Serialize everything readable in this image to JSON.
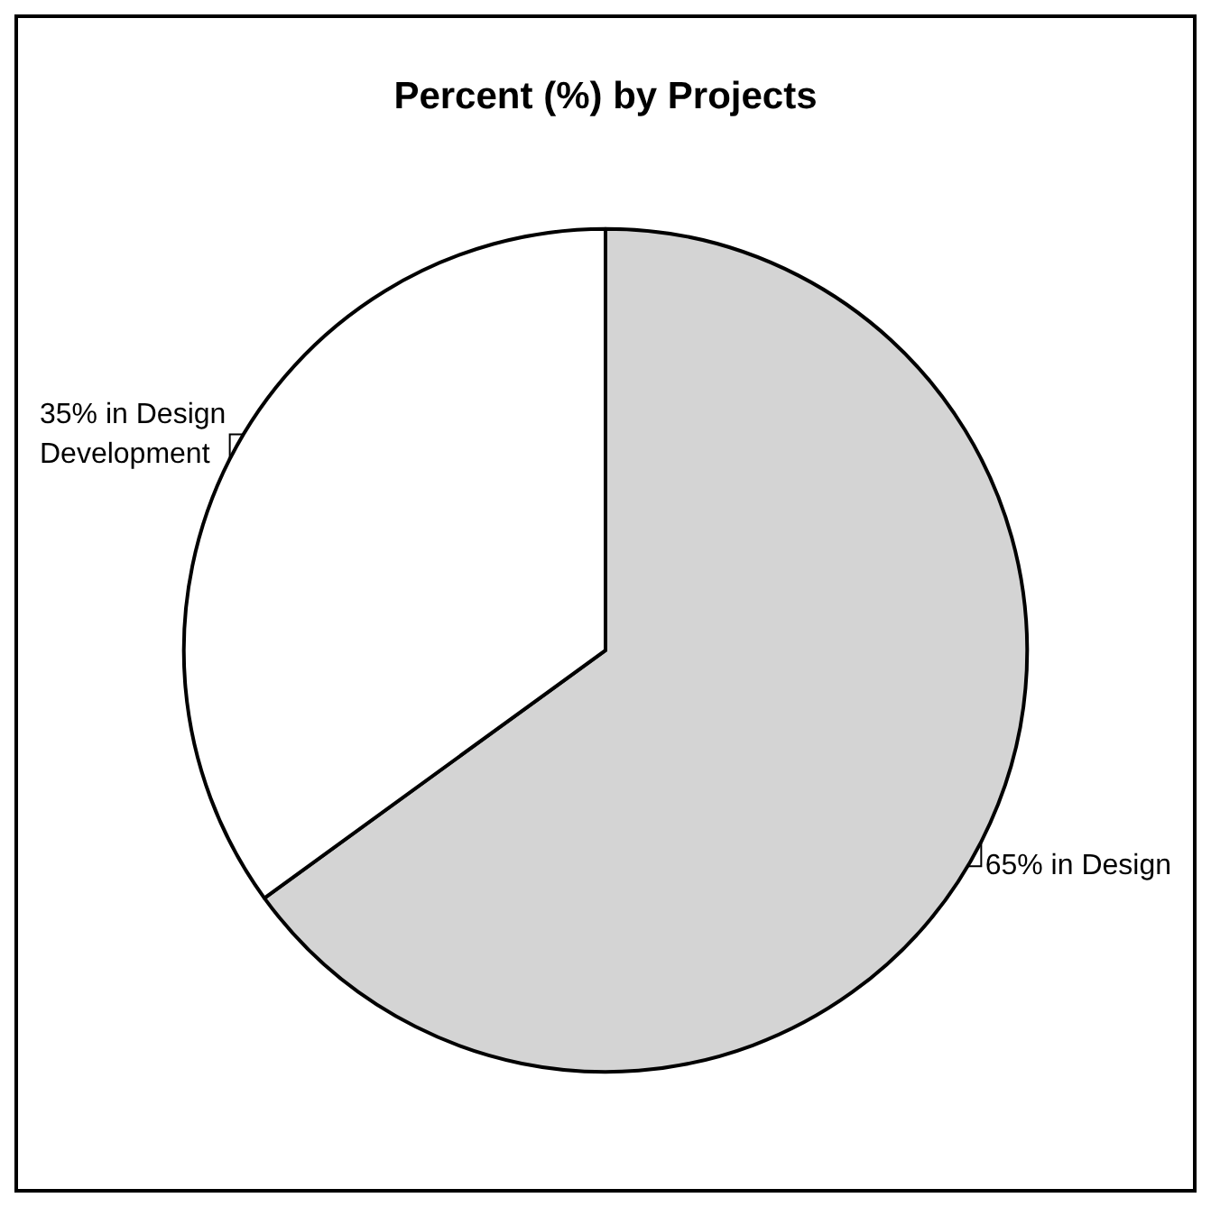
{
  "chart_data": {
    "type": "pie",
    "title": "Percent (%) by Projects",
    "categories": [
      "65% in Design",
      "35% in Design Development"
    ],
    "values": [
      65,
      35
    ],
    "colors": [
      "#d4d4d4",
      "#ffffff"
    ],
    "legend": false
  }
}
